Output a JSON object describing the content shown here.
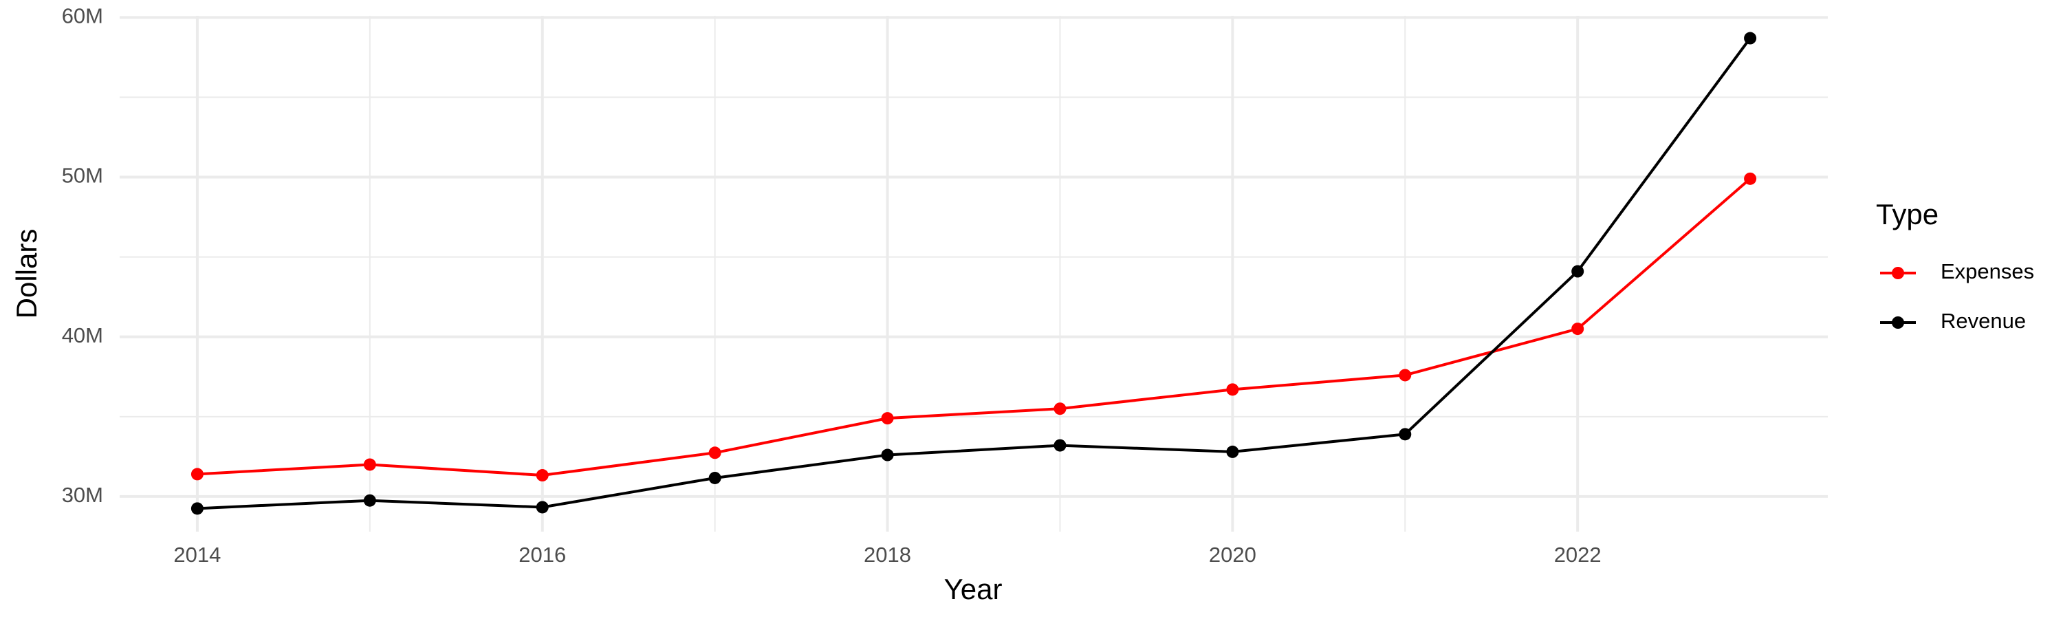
{
  "chart_data": {
    "type": "line",
    "x_label": "Year",
    "y_label": "Dollars",
    "x": [
      2014,
      2015,
      2016,
      2017,
      2018,
      2019,
      2020,
      2021,
      2022,
      2023
    ],
    "series": [
      {
        "name": "Expenses",
        "color": "#ff0000",
        "values": [
          31400000,
          32000000,
          31330000,
          32740000,
          34900000,
          35500000,
          36700000,
          37600000,
          40500000,
          49900000
        ]
      },
      {
        "name": "Revenue",
        "color": "#000000",
        "values": [
          29250000,
          29750000,
          29330000,
          31160000,
          32600000,
          33200000,
          32800000,
          33900000,
          44100000,
          58700000
        ]
      }
    ],
    "xlim": [
      2013.55,
      2023.45
    ],
    "xticks": [
      2014,
      2016,
      2018,
      2020,
      2022
    ],
    "ylim": [
      27800000,
      60100000
    ],
    "yticks": [
      {
        "value": 30000000,
        "label": "30M"
      },
      {
        "value": 40000000,
        "label": "40M"
      },
      {
        "value": 50000000,
        "label": "50M"
      },
      {
        "value": 60000000,
        "label": "60M"
      }
    ],
    "grid": true,
    "legend_title": "Type",
    "legend_position": "right"
  }
}
